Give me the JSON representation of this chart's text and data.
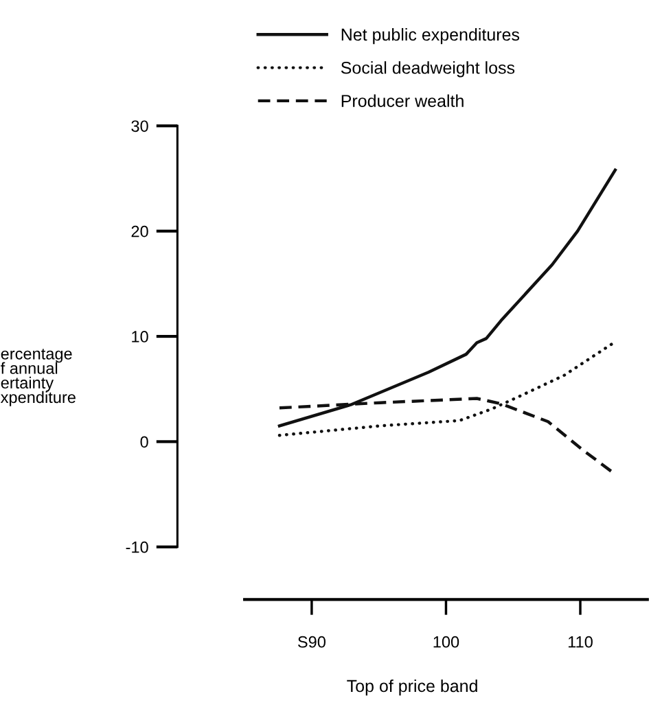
{
  "chart_data": {
    "type": "line",
    "xlabel": "Top of price band",
    "ylabel": "ercentage\nf annual\nertainty\nxpenditure",
    "xlim": [
      80,
      115
    ],
    "xticks": [
      {
        "value": 90,
        "label": "S90"
      },
      100,
      110
    ],
    "ylim": [
      -15,
      30
    ],
    "yticks": [
      -10,
      0,
      10,
      20,
      30
    ],
    "grid": false,
    "legend": "top",
    "series": [
      {
        "name": "Net public expenditures",
        "color": "#111111",
        "line_style": "solid",
        "x": [
          87.6,
          92.9,
          98.7,
          101.5,
          102.3,
          103.0,
          104.1,
          107.9,
          109.8,
          112.6
        ],
        "values": [
          1.5,
          3.5,
          6.6,
          8.3,
          9.4,
          9.8,
          11.5,
          16.8,
          20.0,
          25.8
        ]
      },
      {
        "name": "Social deadweight loss",
        "color": "#111111",
        "line_style": "dotted",
        "x": [
          87.6,
          95.1,
          101.0,
          103.4,
          105.8,
          108.8,
          112.5
        ],
        "values": [
          0.6,
          1.5,
          2.0,
          3.1,
          4.5,
          6.3,
          9.4
        ]
      },
      {
        "name": "Producer wealth",
        "color": "#111111",
        "line_style": "dashed",
        "x": [
          87.6,
          95.1,
          102.3,
          104.1,
          107.6,
          110.2,
          112.6
        ],
        "values": [
          3.2,
          3.7,
          4.1,
          3.6,
          1.9,
          -0.8,
          -3.1
        ]
      }
    ]
  }
}
